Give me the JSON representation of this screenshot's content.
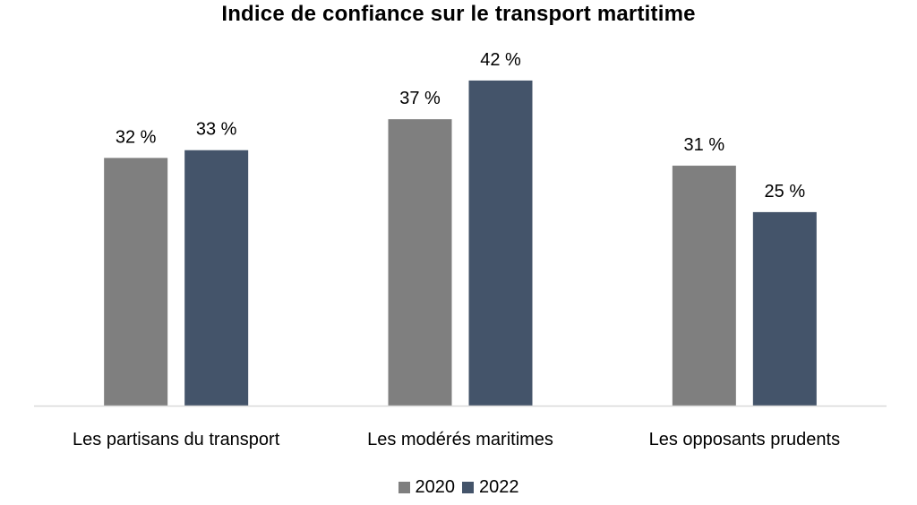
{
  "chart_data": {
    "type": "bar",
    "title": "Indice de confiance sur le transport martitime",
    "categories": [
      "Les partisans du transport",
      "Les modérés maritimes",
      "Les opposants prudents"
    ],
    "series": [
      {
        "name": "2020",
        "values": [
          32,
          37,
          31
        ],
        "labels": [
          "32 %",
          "37 %",
          "31 %"
        ],
        "color": "#7f7f7f"
      },
      {
        "name": "2022",
        "values": [
          33,
          42,
          25
        ],
        "labels": [
          "33 %",
          "42 %",
          "25 %"
        ],
        "color": "#44546a"
      }
    ],
    "xlabel": "",
    "ylabel": "",
    "ylim": [
      0,
      45
    ],
    "grid": false,
    "legend_position": "bottom"
  }
}
